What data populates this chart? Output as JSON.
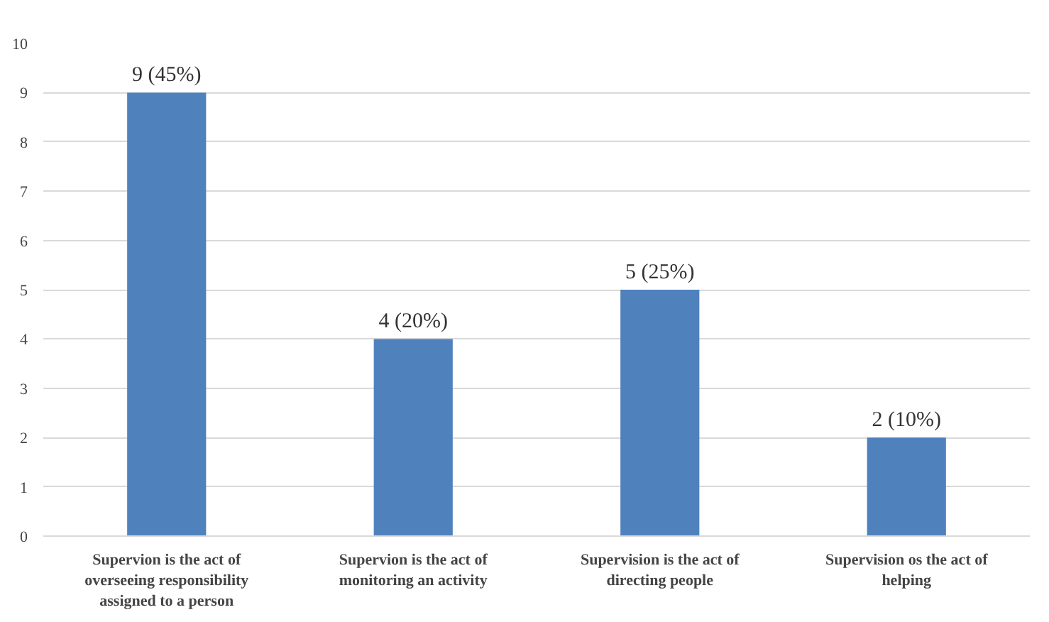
{
  "chart_data": {
    "type": "bar",
    "categories": [
      "Supervion is the act of overseeing responsibility assigned to a person",
      "Supervion is the act of monitoring an activity",
      "Supervision is the act of directing people",
      "Supervision os the act of helping"
    ],
    "values": [
      9,
      4,
      5,
      2
    ],
    "value_labels": [
      "9 (45%)",
      "4 (20%)",
      "5 (25%)",
      "2 (10%)"
    ],
    "color": "#4f81bd",
    "ylim": [
      0,
      10
    ],
    "yticks": [
      0,
      1,
      2,
      3,
      4,
      5,
      6,
      7,
      8,
      9,
      10
    ],
    "grid": "y"
  }
}
